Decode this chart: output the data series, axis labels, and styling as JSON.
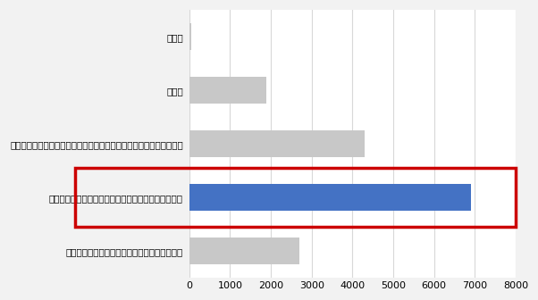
{
  "categories": [
    "データ入力のためのパソコンや機器が足りない",
    "パソコンや端末の操作に対する職員の能力差が大きい",
    "介護ソフト利用に関する職員への研修・指導を体系的に行えていない",
    "その他",
    "無回答"
  ],
  "values": [
    2700,
    6900,
    4300,
    1900,
    50
  ],
  "bar_colors": [
    "#c8c8c8",
    "#4472c4",
    "#c8c8c8",
    "#c8c8c8",
    "#c8c8c8"
  ],
  "highlight_index": 1,
  "highlight_box_color": "#cc0000",
  "xlim": [
    0,
    8000
  ],
  "xticks": [
    0,
    1000,
    2000,
    3000,
    4000,
    5000,
    6000,
    7000,
    8000
  ],
  "background_color": "#f2f2f2",
  "plot_bg_color": "#ffffff",
  "bar_height": 0.5,
  "font_size": 7.5,
  "tick_font_size": 8,
  "grid_color": "#d8d8d8",
  "highlight_lw": 2.5
}
